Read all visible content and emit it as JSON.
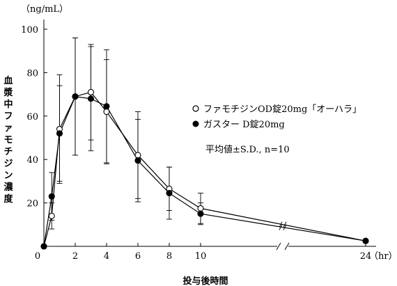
{
  "chart_data": {
    "type": "line",
    "y_unit": "（ng/mL）",
    "x_unit": "（hr）",
    "ylabel": "血漿中ファモチジン濃度",
    "xlabel": "投与後時間",
    "ylim": [
      0,
      100
    ],
    "x_ticks": [
      0,
      2,
      4,
      6,
      8,
      10,
      24
    ],
    "y_ticks": [
      20,
      40,
      60,
      80,
      100
    ],
    "x_axis_break": "between 10 and 24",
    "annotation": "平均値±S.D., n=10",
    "legend_position": "right",
    "series": [
      {
        "name": "ファモチジンOD錠20mg「オーハラ」",
        "marker": "open-circle",
        "color": "#000000",
        "points": [
          {
            "x": 0,
            "y": 0,
            "sd": 0
          },
          {
            "x": 0.5,
            "y": 14,
            "sd": 6
          },
          {
            "x": 1,
            "y": 54,
            "sd": 25
          },
          {
            "x": 2,
            "y": 69,
            "sd": 27
          },
          {
            "x": 3,
            "y": 71,
            "sd": 22
          },
          {
            "x": 4,
            "y": 62,
            "sd": 24
          },
          {
            "x": 6,
            "y": 42,
            "sd": 20
          },
          {
            "x": 8,
            "y": 26.5,
            "sd": 10
          },
          {
            "x": 10,
            "y": 17.5,
            "sd": 7
          },
          {
            "x": 24,
            "y": 2.5,
            "sd": 0
          }
        ]
      },
      {
        "name": "ガスター D錠20mg",
        "marker": "filled-circle",
        "color": "#000000",
        "points": [
          {
            "x": 0,
            "y": 0,
            "sd": 0
          },
          {
            "x": 0.5,
            "y": 23,
            "sd": 11
          },
          {
            "x": 1,
            "y": 52,
            "sd": 22
          },
          {
            "x": 2,
            "y": 69,
            "sd": 27
          },
          {
            "x": 3,
            "y": 68,
            "sd": 24
          },
          {
            "x": 4,
            "y": 64.5,
            "sd": 26
          },
          {
            "x": 6,
            "y": 39.5,
            "sd": 19
          },
          {
            "x": 8,
            "y": 24.5,
            "sd": 12
          },
          {
            "x": 10,
            "y": 15,
            "sd": 5
          },
          {
            "x": 24,
            "y": 2.5,
            "sd": 0
          }
        ]
      }
    ]
  }
}
